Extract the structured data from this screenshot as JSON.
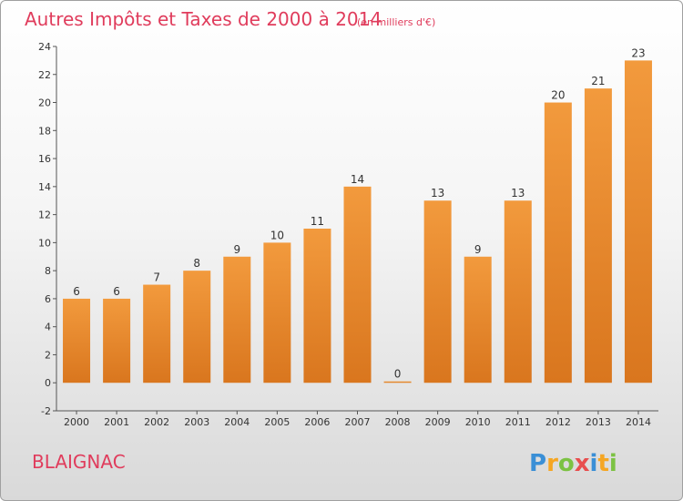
{
  "header": {
    "title": "Autres Impôts et Taxes de 2000 à 2014",
    "subtitle": "(en milliers d'€)"
  },
  "footer": {
    "commune": "BLAIGNAC",
    "logo_letters": [
      "P",
      "r",
      "o",
      "x",
      "i",
      "t",
      "i"
    ],
    "logo_colors": [
      "#3a8fd6",
      "#f5a623",
      "#7cc243",
      "#e84e4e",
      "#3a8fd6",
      "#f5a623",
      "#7cc243"
    ]
  },
  "chart_data": {
    "type": "bar",
    "title": "Autres Impôts et Taxes de 2000 à 2014",
    "subtitle": "(en milliers d'€)",
    "categories": [
      "2000",
      "2001",
      "2002",
      "2003",
      "2004",
      "2005",
      "2006",
      "2007",
      "2008",
      "2009",
      "2010",
      "2011",
      "2012",
      "2013",
      "2014"
    ],
    "values": [
      6,
      6,
      7,
      8,
      9,
      10,
      11,
      14,
      0,
      13,
      9,
      13,
      20,
      21,
      23
    ],
    "value_labels": [
      "6",
      "6",
      "7",
      "8",
      "9",
      "10",
      "11",
      "14",
      "0",
      "13",
      "9",
      "13",
      "20",
      "21",
      "23"
    ],
    "y_ticks": [
      -2,
      0,
      2,
      4,
      6,
      8,
      10,
      12,
      14,
      16,
      18,
      20,
      22,
      24
    ],
    "y_tick_labels": [
      "-2",
      "0",
      "2",
      "4",
      "6",
      "8",
      "10",
      "12",
      "14",
      "16",
      "18",
      "20",
      "22",
      "24"
    ],
    "ylim": [
      -2,
      24
    ],
    "grid": false,
    "bar_color": "#f29a3d",
    "bar_color_dark": "#d9761e",
    "legend": "none"
  }
}
